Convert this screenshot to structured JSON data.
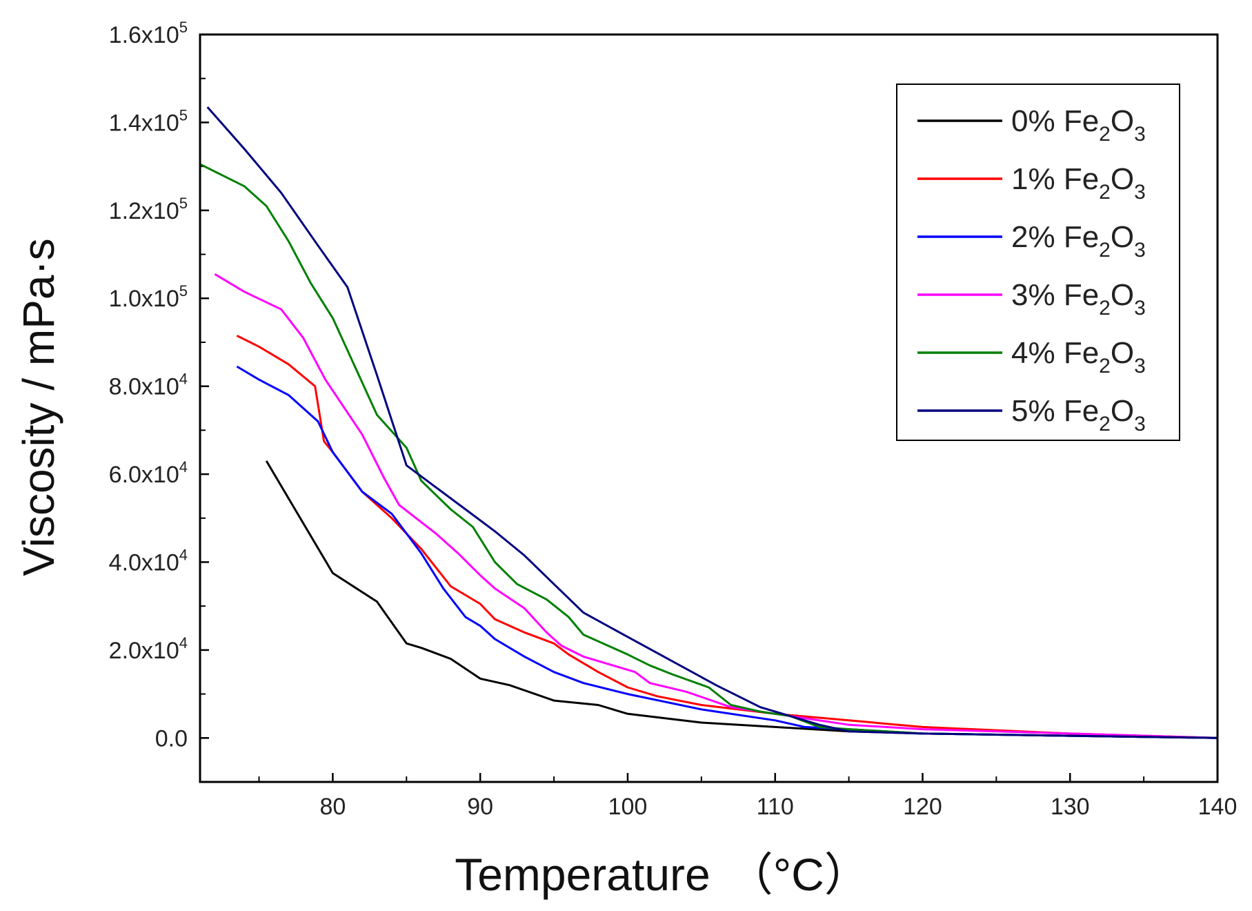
{
  "chart_data": {
    "type": "line",
    "title": "",
    "xlabel": "Temperature",
    "xlabel_unit": "（°C）",
    "ylabel": "Viscosity / mPa·s",
    "xlim": [
      71,
      140
    ],
    "ylim": [
      -10000,
      160000
    ],
    "x_ticks": [
      80,
      90,
      100,
      110,
      120,
      130,
      140
    ],
    "x_tick_labels": [
      "80",
      "90",
      "100",
      "110",
      "120",
      "130",
      "140"
    ],
    "y_ticks": [
      0,
      20000,
      40000,
      60000,
      80000,
      100000,
      120000,
      140000,
      160000
    ],
    "y_tick_labels": [
      {
        "mantissa": "0.0",
        "exp": ""
      },
      {
        "mantissa": "2.0x10",
        "exp": "4"
      },
      {
        "mantissa": "4.0x10",
        "exp": "4"
      },
      {
        "mantissa": "6.0x10",
        "exp": "4"
      },
      {
        "mantissa": "8.0x10",
        "exp": "4"
      },
      {
        "mantissa": "1.0x10",
        "exp": "5"
      },
      {
        "mantissa": "1.2x10",
        "exp": "5"
      },
      {
        "mantissa": "1.4x10",
        "exp": "5"
      },
      {
        "mantissa": "1.6x10",
        "exp": "5"
      }
    ],
    "grid": false,
    "legend_position": "top-right",
    "series": [
      {
        "name": "0% Fe2O3",
        "label": {
          "prefix": "0% Fe",
          "sub1": "2",
          "mid": "O",
          "sub2": "3"
        },
        "color": "#000000",
        "x": [
          75.5,
          80,
          83,
          85,
          86,
          88,
          90,
          92,
          95,
          98,
          100,
          105,
          110,
          115,
          120,
          130,
          140
        ],
        "y": [
          63000,
          37500,
          31000,
          21500,
          20500,
          18000,
          13500,
          12000,
          8500,
          7500,
          5500,
          3500,
          2500,
          1500,
          1000,
          500,
          0
        ]
      },
      {
        "name": "1% Fe2O3",
        "label": {
          "prefix": "1% Fe",
          "sub1": "2",
          "mid": "O",
          "sub2": "3"
        },
        "color": "#ff0000",
        "x": [
          73.5,
          75,
          77,
          78.8,
          79.4,
          80,
          82,
          84,
          86,
          88,
          90,
          91,
          93,
          95,
          96,
          98,
          100,
          102,
          105,
          110,
          115,
          120,
          130,
          140
        ],
        "y": [
          91500,
          89000,
          85000,
          80000,
          67500,
          65000,
          56000,
          50000,
          43000,
          34500,
          30500,
          27000,
          24000,
          21500,
          19000,
          15000,
          11500,
          9500,
          7500,
          5500,
          4000,
          2500,
          1000,
          0
        ]
      },
      {
        "name": "2% Fe2O3",
        "label": {
          "prefix": "2% Fe",
          "sub1": "2",
          "mid": "O",
          "sub2": "3"
        },
        "color": "#0000ff",
        "x": [
          73.5,
          75,
          77,
          79,
          80,
          82,
          84,
          86,
          87.5,
          89,
          90,
          91,
          93,
          95,
          97,
          100,
          105,
          110,
          112,
          115,
          120,
          130,
          140
        ],
        "y": [
          84500,
          81500,
          78000,
          72000,
          65000,
          56000,
          51000,
          42000,
          34000,
          27500,
          25500,
          22500,
          18500,
          15000,
          12500,
          10000,
          6500,
          4000,
          2500,
          2000,
          1000,
          500,
          0
        ]
      },
      {
        "name": "3% Fe2O3",
        "label": {
          "prefix": "3% Fe",
          "sub1": "2",
          "mid": "O",
          "sub2": "3"
        },
        "color": "#ff00ff",
        "x": [
          72,
          74,
          76.5,
          78,
          79.5,
          81,
          82,
          83.5,
          84.5,
          87,
          88.5,
          90,
          91,
          93,
          94.5,
          95.5,
          97,
          99,
          100.5,
          101.5,
          104,
          107,
          110,
          112,
          115,
          120,
          130,
          140
        ],
        "y": [
          105500,
          101500,
          97500,
          91000,
          81500,
          74000,
          69000,
          59000,
          53000,
          46500,
          42000,
          37000,
          34000,
          29500,
          24000,
          21000,
          18500,
          16500,
          15000,
          12500,
          10500,
          7000,
          5500,
          4500,
          3000,
          2000,
          1000,
          0
        ]
      },
      {
        "name": "4% Fe2O3",
        "label": {
          "prefix": "4% Fe",
          "sub1": "2",
          "mid": "O",
          "sub2": "3"
        },
        "color": "#008000",
        "x": [
          71,
          74,
          75.5,
          77,
          78.5,
          80,
          83,
          85,
          86,
          88,
          89.5,
          91,
          92.5,
          94.5,
          96,
          97,
          100,
          101.5,
          103,
          105.5,
          107,
          109,
          111,
          113,
          115,
          120,
          130,
          140
        ],
        "y": [
          130500,
          125500,
          121000,
          113000,
          103500,
          95500,
          73500,
          66000,
          58500,
          52000,
          48000,
          40000,
          35000,
          31500,
          27500,
          23500,
          19000,
          16500,
          14500,
          11500,
          7500,
          6000,
          5000,
          2500,
          2000,
          1000,
          500,
          0
        ]
      },
      {
        "name": "5% Fe2O3",
        "label": {
          "prefix": "5% Fe",
          "sub1": "2",
          "mid": "O",
          "sub2": "3"
        },
        "color": "#000080",
        "x": [
          71.5,
          74,
          76.5,
          79,
          81,
          83,
          85,
          87,
          89,
          91,
          93,
          95,
          97,
          100,
          103,
          106,
          109,
          111,
          113,
          115,
          120,
          130,
          140
        ],
        "y": [
          143500,
          134000,
          124000,
          112000,
          102500,
          82500,
          62000,
          57000,
          52000,
          47000,
          41500,
          35000,
          28500,
          23000,
          17500,
          12000,
          7000,
          5000,
          3000,
          1500,
          1000,
          500,
          0
        ]
      }
    ]
  }
}
